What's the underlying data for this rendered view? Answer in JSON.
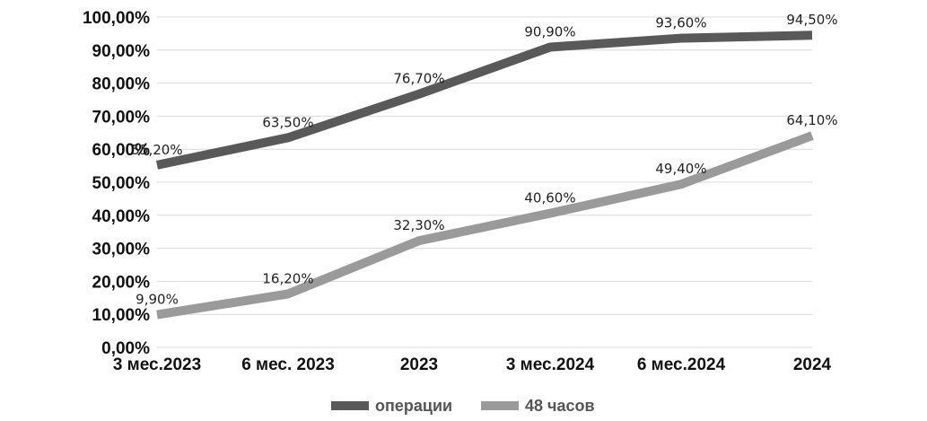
{
  "chart_data": {
    "type": "line",
    "categories": [
      "3 мес.2023",
      "6 мес. 2023",
      "2023",
      "3 мес.2024",
      "6 мес.2024",
      "2024"
    ],
    "series": [
      {
        "name": "операции",
        "values": [
          55.2,
          63.5,
          76.7,
          90.9,
          93.6,
          94.5
        ],
        "labels": [
          "55,20%",
          "63,50%",
          "76,70%",
          "90,90%",
          "93,60%",
          "94,50%"
        ],
        "color": "#595959"
      },
      {
        "name": "48 часов",
        "values": [
          9.9,
          16.2,
          32.3,
          40.6,
          49.4,
          64.1
        ],
        "labels": [
          "9,90%",
          "16,20%",
          "32,30%",
          "40,60%",
          "49,40%",
          "64,10%"
        ],
        "color": "#9a9a9a"
      }
    ],
    "yticks": [
      "0,00%",
      "10,00%",
      "20,00%",
      "30,00%",
      "40,00%",
      "50,00%",
      "60,00%",
      "70,00%",
      "80,00%",
      "90,00%",
      "100,00%"
    ],
    "ylim": [
      0,
      100
    ],
    "grid": true,
    "legend_position": "bottom",
    "title": "",
    "xlabel": "",
    "ylabel": ""
  }
}
